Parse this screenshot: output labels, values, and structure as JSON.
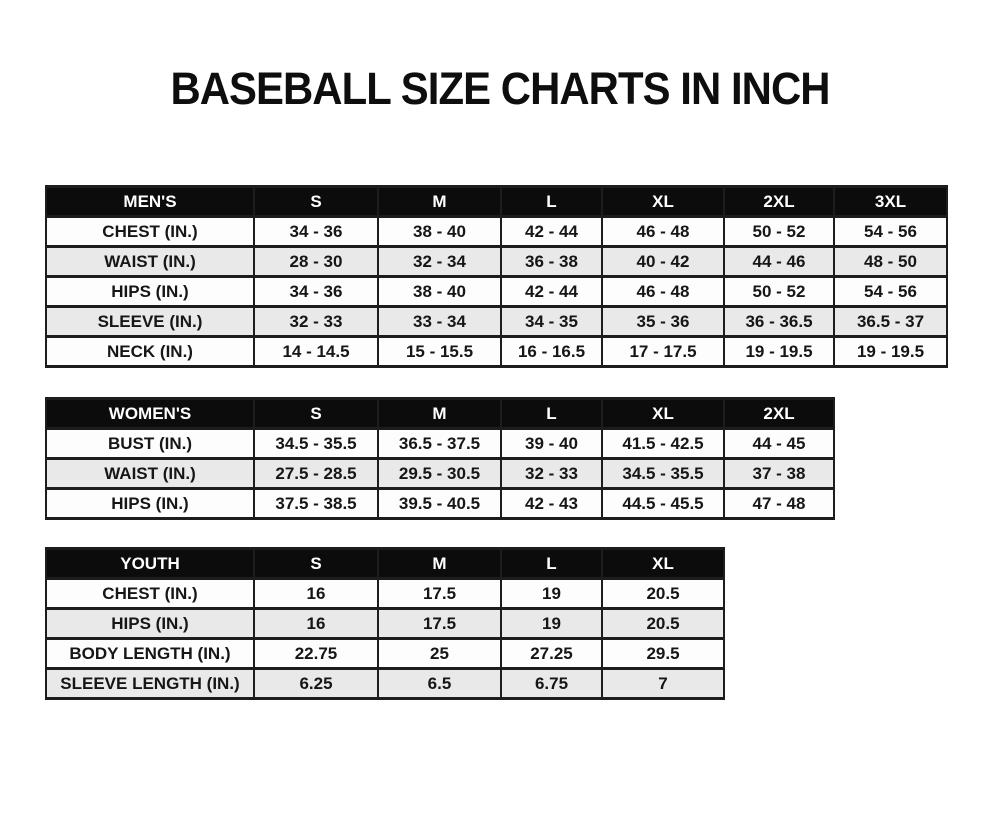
{
  "title": "BASEBALL SIZE CHARTS IN INCH",
  "colors": {
    "header_bg": "#0c0c0c",
    "header_text": "#ffffff",
    "row_bg": "#fdfdfd",
    "row_alt_bg": "#e9e9e9",
    "border": "#1d1d1d"
  },
  "chart_data": [
    {
      "type": "table",
      "title": "MEN'S",
      "header": [
        "MEN'S",
        "S",
        "M",
        "L",
        "XL",
        "2XL",
        "3XL"
      ],
      "rows": [
        [
          "CHEST (IN.)",
          "34 - 36",
          "38 - 40",
          "42 - 44",
          "46 - 48",
          "50 - 52",
          "54 - 56"
        ],
        [
          "WAIST (IN.)",
          "28 - 30",
          "32 - 34",
          "36 - 38",
          "40 - 42",
          "44 - 46",
          "48 - 50"
        ],
        [
          "HIPS (IN.)",
          "34 - 36",
          "38 - 40",
          "42 - 44",
          "46 - 48",
          "50 - 52",
          "54 - 56"
        ],
        [
          "SLEEVE (IN.)",
          "32 - 33",
          "33 - 34",
          "34 - 35",
          "35 - 36",
          "36 - 36.5",
          "36.5 - 37"
        ],
        [
          "NECK (IN.)",
          "14 - 14.5",
          "15 - 15.5",
          "16 - 16.5",
          "17 - 17.5",
          "19 - 19.5",
          "19 - 19.5"
        ]
      ]
    },
    {
      "type": "table",
      "title": "WOMEN'S",
      "header": [
        "WOMEN'S",
        "S",
        "M",
        "L",
        "XL",
        "2XL"
      ],
      "rows": [
        [
          "BUST (IN.)",
          "34.5 - 35.5",
          "36.5 - 37.5",
          "39 - 40",
          "41.5 - 42.5",
          "44 - 45"
        ],
        [
          "WAIST (IN.)",
          "27.5 - 28.5",
          "29.5 - 30.5",
          "32 - 33",
          "34.5 - 35.5",
          "37 - 38"
        ],
        [
          "HIPS (IN.)",
          "37.5 - 38.5",
          "39.5 - 40.5",
          "42 - 43",
          "44.5 - 45.5",
          "47 - 48"
        ]
      ]
    },
    {
      "type": "table",
      "title": "YOUTH",
      "header": [
        "YOUTH",
        "S",
        "M",
        "L",
        "XL"
      ],
      "rows": [
        [
          "CHEST (IN.)",
          "16",
          "17.5",
          "19",
          "20.5"
        ],
        [
          "HIPS (IN.)",
          "16",
          "17.5",
          "19",
          "20.5"
        ],
        [
          "BODY LENGTH (IN.)",
          "22.75",
          "25",
          "27.25",
          "29.5"
        ],
        [
          "SLEEVE LENGTH (IN.)",
          "6.25",
          "6.5",
          "6.75",
          "7"
        ]
      ]
    }
  ]
}
